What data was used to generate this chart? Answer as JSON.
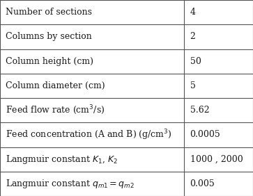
{
  "rows": [
    {
      "label": "Number of sections",
      "label_math": false,
      "value": "4"
    },
    {
      "label": "Columns by section",
      "label_math": false,
      "value": "2"
    },
    {
      "label": "Column height (cm)",
      "label_math": false,
      "value": "50"
    },
    {
      "label": "Column diameter (cm)",
      "label_math": false,
      "value": "5"
    },
    {
      "label": "Feed flow rate (cm$^3$/s)",
      "label_math": false,
      "value": "5.62"
    },
    {
      "label": "Feed concentration (A and B) (g/cm$^3$)",
      "label_math": false,
      "value": "0.0005"
    },
    {
      "label_part1": "Langmuir constant ",
      "label_part2": "$K_1$, $K_2$",
      "label_math": true,
      "value": "1000 , 2000"
    },
    {
      "label_part1": "Langmuir constant ",
      "label_part2": "$q_{m1} = q_{m2}$",
      "label_math": true,
      "value": "0.005"
    }
  ],
  "col_split": 0.726,
  "background_color": "#ffffff",
  "border_color": "#555555",
  "text_color": "#1a1a1a",
  "fontsize": 9.0
}
